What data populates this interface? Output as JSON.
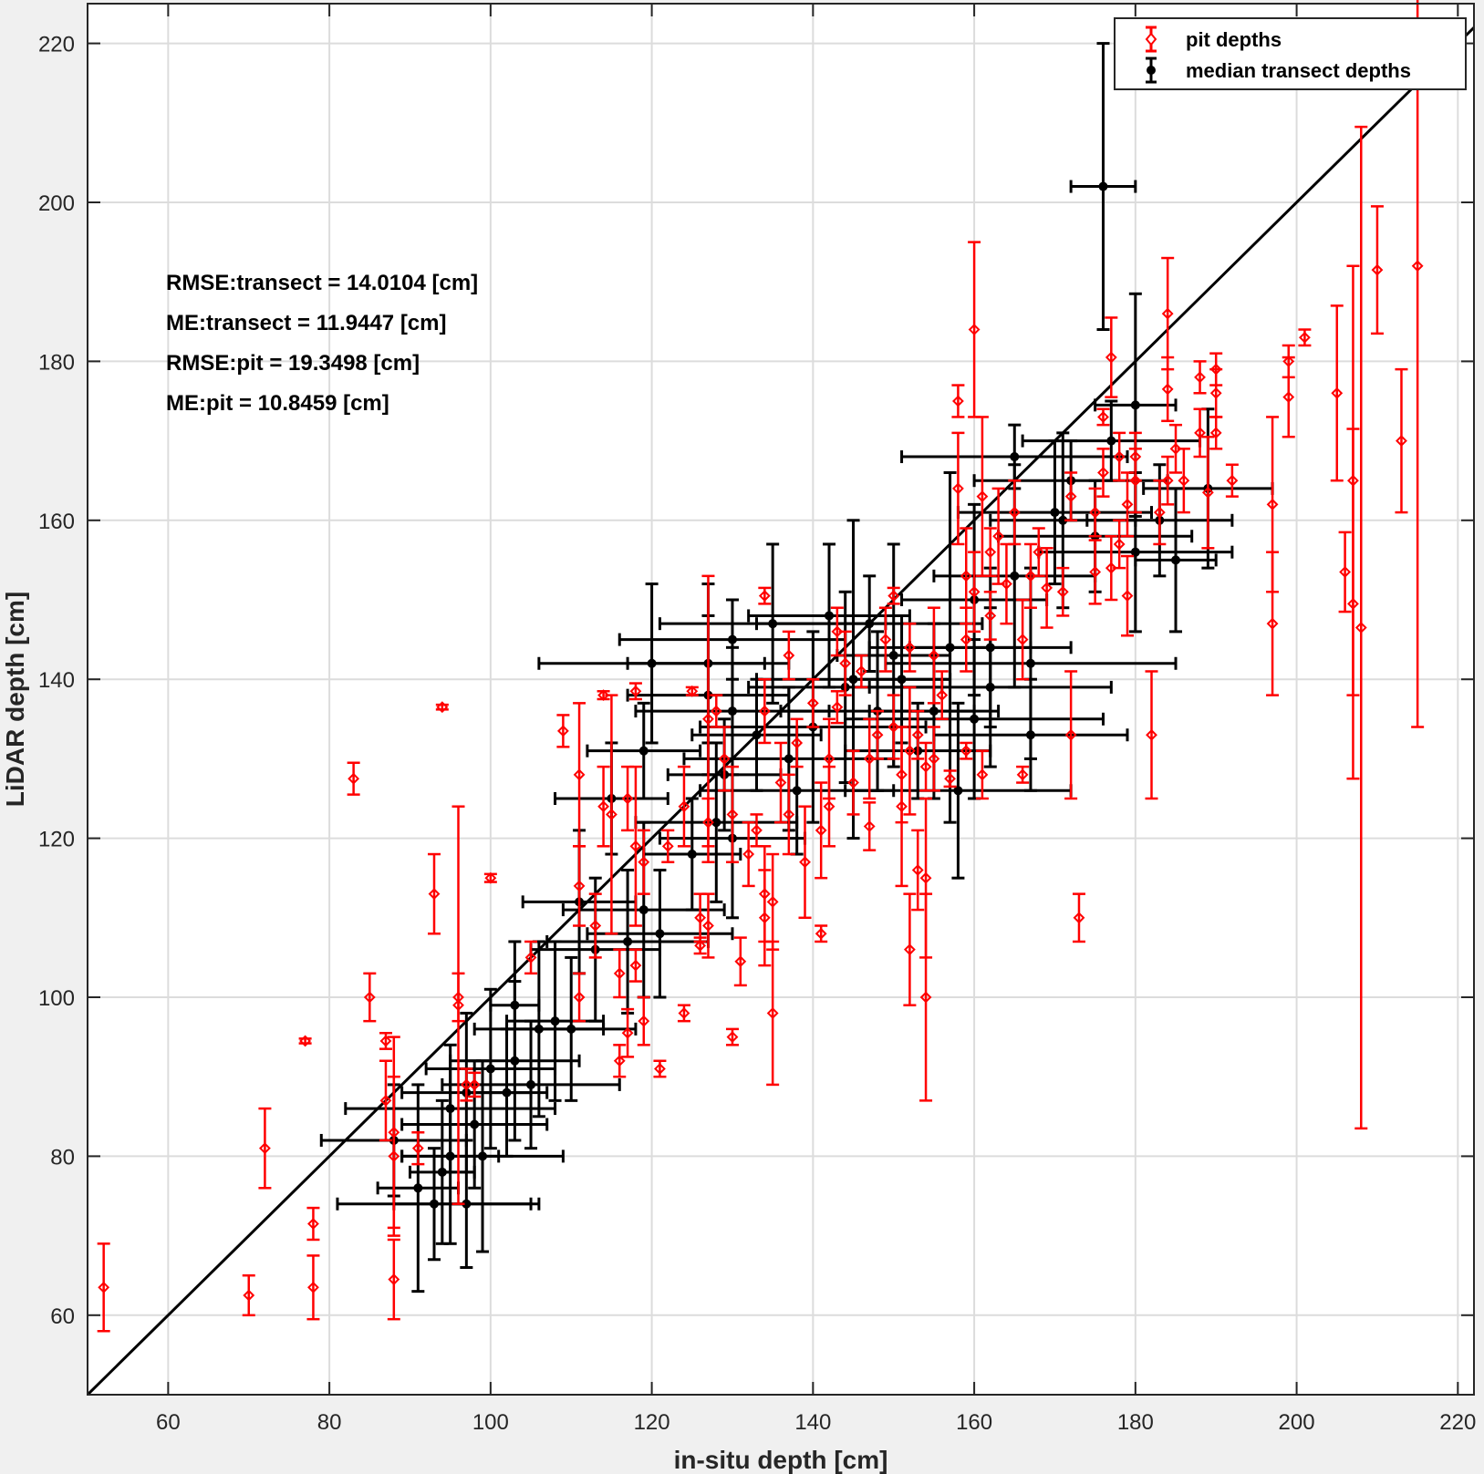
{
  "chart_data": {
    "type": "scatter",
    "xlabel": "in-situ depth [cm]",
    "ylabel": "LiDAR depth [cm]",
    "xlim": [
      50,
      222
    ],
    "ylim": [
      50,
      225
    ],
    "xticks": [
      60,
      80,
      100,
      120,
      140,
      160,
      180,
      200,
      220
    ],
    "yticks": [
      60,
      80,
      100,
      120,
      140,
      160,
      180,
      200,
      220
    ],
    "grid": true,
    "legend_position": "top-right",
    "reference_line": "1:1",
    "annotations": [
      "RMSE:transect = 14.0104 [cm]",
      "ME:transect = 11.9447 [cm]",
      "RMSE:pit = 19.3498 [cm]",
      "ME:pit = 10.8459 [cm]"
    ],
    "series": [
      {
        "name": "pit depths",
        "color": "#ff0000",
        "marker": "diamond",
        "error": "vertical",
        "points": [
          [
            52,
            63.5,
            5.5
          ],
          [
            70,
            62.5,
            2.5
          ],
          [
            72,
            81,
            5
          ],
          [
            77,
            94.5,
            0.3
          ],
          [
            78,
            71.5,
            2
          ],
          [
            78,
            63.5,
            4
          ],
          [
            83,
            127.5,
            2
          ],
          [
            85,
            100,
            3
          ],
          [
            87,
            94.5,
            1
          ],
          [
            87,
            87,
            5
          ],
          [
            88,
            83,
            12
          ],
          [
            88,
            80,
            10
          ],
          [
            88,
            64.5,
            5
          ],
          [
            91,
            81,
            2
          ],
          [
            93,
            113,
            5
          ],
          [
            94,
            136.5,
            0.3
          ],
          [
            96,
            99,
            25
          ],
          [
            96,
            100,
            3
          ],
          [
            97,
            89,
            2
          ],
          [
            98,
            89,
            1.5
          ],
          [
            100,
            115,
            0.5
          ],
          [
            105,
            105,
            2
          ],
          [
            109,
            133.5,
            2
          ],
          [
            111,
            100,
            3
          ],
          [
            111,
            114,
            5
          ],
          [
            111,
            128,
            9
          ],
          [
            113,
            109,
            4
          ],
          [
            114,
            138,
            0.5
          ],
          [
            114,
            124,
            5
          ],
          [
            115,
            123,
            15
          ],
          [
            116,
            103,
            3
          ],
          [
            116,
            92,
            2
          ],
          [
            117,
            95.5,
            3
          ],
          [
            117,
            125,
            4
          ],
          [
            118,
            138.5,
            1
          ],
          [
            118,
            119,
            10
          ],
          [
            118,
            104,
            2
          ],
          [
            119,
            117,
            4
          ],
          [
            119,
            97,
            3
          ],
          [
            121,
            91,
            1
          ],
          [
            122,
            119,
            2
          ],
          [
            124,
            124,
            5
          ],
          [
            124,
            98,
            1
          ],
          [
            125,
            138.5,
            0.5
          ],
          [
            126,
            106.5,
            1
          ],
          [
            126,
            110,
            3
          ],
          [
            127,
            135,
            18
          ],
          [
            127,
            122,
            3
          ],
          [
            127,
            109,
            4
          ],
          [
            128,
            136,
            2
          ],
          [
            129,
            130,
            4
          ],
          [
            130,
            95,
            1
          ],
          [
            130,
            123,
            6
          ],
          [
            131,
            104.5,
            3
          ],
          [
            132,
            118,
            4
          ],
          [
            133,
            121,
            2
          ],
          [
            134,
            150.5,
            1
          ],
          [
            134,
            136,
            4
          ],
          [
            134,
            110,
            6
          ],
          [
            134,
            113,
            6
          ],
          [
            135,
            112,
            6
          ],
          [
            135,
            98,
            9
          ],
          [
            136,
            127,
            5
          ],
          [
            137,
            123,
            5
          ],
          [
            137,
            143,
            3
          ],
          [
            138,
            132,
            3
          ],
          [
            139,
            117,
            7
          ],
          [
            140,
            137,
            3
          ],
          [
            141,
            121,
            6
          ],
          [
            141,
            108,
            1
          ],
          [
            142,
            124,
            5
          ],
          [
            142,
            130,
            5
          ],
          [
            143,
            146,
            3
          ],
          [
            143,
            136.5,
            2
          ],
          [
            144,
            142,
            4
          ],
          [
            145,
            127,
            4
          ],
          [
            146,
            141,
            2
          ],
          [
            147,
            130,
            5
          ],
          [
            147,
            121.5,
            3
          ],
          [
            148,
            133,
            3
          ],
          [
            149,
            145,
            4
          ],
          [
            150,
            150.5,
            1
          ],
          [
            150,
            134,
            4
          ],
          [
            151,
            128,
            6
          ],
          [
            151,
            124,
            10
          ],
          [
            152,
            131,
            8
          ],
          [
            152,
            144,
            3
          ],
          [
            152,
            106,
            7
          ],
          [
            153,
            116,
            5
          ],
          [
            153,
            133,
            3
          ],
          [
            154,
            100,
            13
          ],
          [
            154,
            129,
            3
          ],
          [
            154,
            115,
            10
          ],
          [
            155,
            130,
            4
          ],
          [
            155,
            143,
            6
          ],
          [
            156,
            138,
            3
          ],
          [
            157,
            127.5,
            1
          ],
          [
            158,
            175,
            2
          ],
          [
            158,
            164,
            7
          ],
          [
            159,
            145,
            4
          ],
          [
            159,
            131,
            1
          ],
          [
            159,
            153,
            6
          ],
          [
            160,
            151,
            5
          ],
          [
            160,
            184,
            11
          ],
          [
            161,
            128,
            3
          ],
          [
            161,
            163,
            10
          ],
          [
            162,
            148,
            3
          ],
          [
            162,
            156,
            3
          ],
          [
            163,
            158,
            6
          ],
          [
            164,
            152,
            5
          ],
          [
            165,
            161,
            4
          ],
          [
            166,
            145,
            5
          ],
          [
            166,
            128,
            1
          ],
          [
            167,
            153,
            4
          ],
          [
            168,
            156,
            3
          ],
          [
            169,
            151.5,
            5
          ],
          [
            171,
            151,
            3
          ],
          [
            172,
            163,
            3
          ],
          [
            172,
            133,
            8
          ],
          [
            173,
            110,
            3
          ],
          [
            175,
            153.5,
            4
          ],
          [
            175,
            161,
            3
          ],
          [
            176,
            166,
            3
          ],
          [
            176,
            173,
            1
          ],
          [
            177,
            154,
            4
          ],
          [
            177,
            180.5,
            5
          ],
          [
            178,
            157,
            3
          ],
          [
            178,
            168,
            3
          ],
          [
            179,
            150.5,
            5
          ],
          [
            179,
            162,
            4
          ],
          [
            180,
            165,
            4
          ],
          [
            180,
            168,
            3
          ],
          [
            182,
            133,
            8
          ],
          [
            183,
            161,
            4
          ],
          [
            184,
            165,
            3
          ],
          [
            184,
            186,
            7
          ],
          [
            184,
            176.5,
            4
          ],
          [
            185,
            169,
            3
          ],
          [
            186,
            165,
            4
          ],
          [
            188,
            178,
            2
          ],
          [
            188,
            171,
            3
          ],
          [
            189,
            163.5,
            7
          ],
          [
            190,
            171,
            2
          ],
          [
            190,
            176,
            3
          ],
          [
            190,
            179,
            2
          ],
          [
            192,
            165,
            2
          ],
          [
            197,
            147,
            9
          ],
          [
            197,
            162,
            11
          ],
          [
            199,
            180,
            2
          ],
          [
            199,
            175.5,
            5
          ],
          [
            201,
            183,
            1
          ],
          [
            205,
            176,
            11
          ],
          [
            206,
            153.5,
            5
          ],
          [
            207,
            149.5,
            22
          ],
          [
            207,
            165,
            27
          ],
          [
            208,
            146.5,
            63
          ],
          [
            210,
            191.5,
            8
          ],
          [
            213,
            170,
            9
          ],
          [
            215,
            192,
            58
          ]
        ]
      },
      {
        "name": "median transect depths",
        "color": "#000000",
        "marker": "circle",
        "error": "both",
        "points": [
          [
            176,
            202,
            4,
            18
          ],
          [
            180,
            174.5,
            5,
            14
          ],
          [
            170,
            161,
            12,
            9
          ],
          [
            165,
            153,
            10,
            14
          ],
          [
            160,
            150,
            9,
            12
          ],
          [
            157,
            144,
            10,
            22
          ],
          [
            150,
            143,
            7,
            14
          ],
          [
            145,
            140,
            12,
            20
          ],
          [
            148,
            136,
            12,
            10
          ],
          [
            155,
            136,
            8,
            11
          ],
          [
            160,
            135,
            16,
            10
          ],
          [
            140,
            134,
            14,
            12
          ],
          [
            133,
            133,
            8,
            7
          ],
          [
            129,
            128,
            7,
            7
          ],
          [
            138,
            126,
            12,
            8
          ],
          [
            128,
            122,
            10,
            10
          ],
          [
            130,
            120,
            9,
            10
          ],
          [
            125,
            118,
            6,
            7
          ],
          [
            119,
            111,
            10,
            11
          ],
          [
            121,
            108,
            9,
            8
          ],
          [
            117,
            107,
            10,
            9
          ],
          [
            113,
            106,
            8,
            9
          ],
          [
            103,
            99,
            3,
            8
          ],
          [
            108,
            97,
            6,
            10
          ],
          [
            110,
            96,
            8,
            9
          ],
          [
            103,
            92,
            8,
            10
          ],
          [
            100,
            91,
            8,
            10
          ],
          [
            97,
            88,
            8,
            10
          ],
          [
            95,
            86,
            13,
            8
          ],
          [
            98,
            84,
            9,
            8
          ],
          [
            95,
            80,
            6,
            11
          ],
          [
            94,
            78,
            4,
            9
          ],
          [
            93,
            74,
            12,
            7
          ],
          [
            97,
            74,
            9,
            8
          ],
          [
            88,
            82,
            9,
            7
          ],
          [
            91,
            76,
            5,
            13
          ],
          [
            165,
            168,
            14,
            4
          ],
          [
            172,
            165,
            12,
            5
          ],
          [
            175,
            158,
            12,
            7
          ],
          [
            180,
            156,
            12,
            10
          ],
          [
            185,
            155,
            5,
            9
          ],
          [
            167,
            142,
            18,
            12
          ],
          [
            162,
            144,
            10,
            10
          ],
          [
            147,
            147,
            14,
            6
          ],
          [
            142,
            148,
            10,
            9
          ],
          [
            135,
            147,
            14,
            10
          ],
          [
            130,
            145,
            14,
            5
          ],
          [
            127,
            142,
            10,
            10
          ],
          [
            120,
            142,
            14,
            10
          ],
          [
            153,
            131,
            9,
            6
          ],
          [
            151,
            140,
            6,
            8
          ],
          [
            158,
            126,
            14,
            11
          ],
          [
            162,
            139,
            15,
            10
          ],
          [
            167,
            133,
            12,
            7
          ],
          [
            171,
            160,
            9,
            11
          ],
          [
            177,
            170,
            11,
            5
          ],
          [
            183,
            160,
            9,
            7
          ],
          [
            189,
            164,
            8,
            10
          ],
          [
            144,
            139,
            12,
            12
          ],
          [
            137,
            130,
            13,
            9
          ],
          [
            130,
            136,
            12,
            8
          ],
          [
            127,
            138,
            10,
            10
          ],
          [
            119,
            131,
            7,
            6
          ],
          [
            115,
            125,
            7,
            7
          ],
          [
            111,
            112,
            7,
            9
          ],
          [
            106,
            96,
            8,
            11
          ],
          [
            105,
            89,
            11,
            8
          ],
          [
            102,
            88,
            5,
            8
          ],
          [
            99,
            80,
            10,
            12
          ]
        ]
      }
    ]
  }
}
